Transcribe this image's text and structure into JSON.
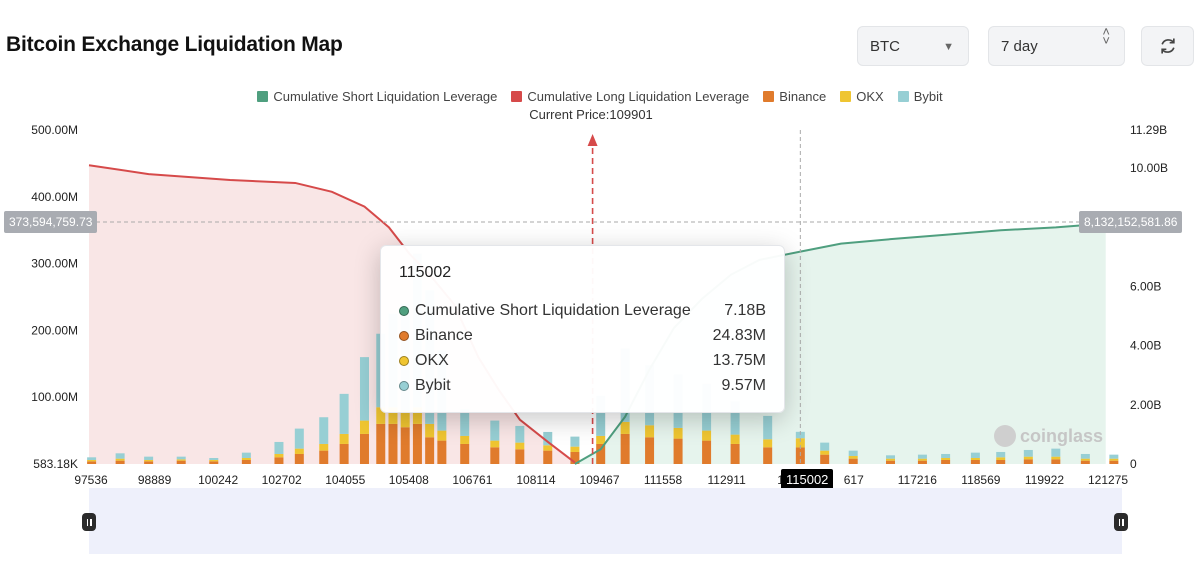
{
  "header": {
    "title": "Bitcoin Exchange Liquidation Map",
    "symbol_select": "BTC",
    "range_select": "7 day",
    "refresh_icon": "refresh-icon"
  },
  "legend": [
    {
      "label": "Cumulative Short Liquidation Leverage",
      "color": "#4f9f7f"
    },
    {
      "label": "Cumulative Long Liquidation Leverage",
      "color": "#d64a4a"
    },
    {
      "label": "Binance",
      "color": "#e07b2c"
    },
    {
      "label": "OKX",
      "color": "#efc531"
    },
    {
      "label": "Bybit",
      "color": "#97cfd4"
    }
  ],
  "current_price_label": "Current Price:109901",
  "tooltip": {
    "title": "115002",
    "rows": [
      {
        "label": "Cumulative Short Liquidation Leverage",
        "value": "7.18B",
        "color": "#4f9f7f"
      },
      {
        "label": "Binance",
        "value": "24.83M",
        "color": "#e07b2c"
      },
      {
        "label": "OKX",
        "value": "13.75M",
        "color": "#efc531"
      },
      {
        "label": "Bybit",
        "value": "9.57M",
        "color": "#97cfd4"
      }
    ]
  },
  "crosshair": {
    "x_label": "115002",
    "left_axis_label": "373,594,759.73",
    "right_axis_label": "8,132,152,581.86"
  },
  "watermark": "coinglass",
  "chart_data": {
    "type": "bar",
    "x_ticks": [
      "97536",
      "98889",
      "100242",
      "102702",
      "104055",
      "105408",
      "106761",
      "108114",
      "109467",
      "111558",
      "112911",
      "1142",
      "617",
      "117216",
      "118569",
      "119922",
      "121275"
    ],
    "left_axis": {
      "ticks": [
        "583.18K",
        "100.00M",
        "200.00M",
        "300.00M",
        "400.00M",
        "500.00M"
      ],
      "range": [
        0,
        500000000
      ]
    },
    "right_axis": {
      "ticks": [
        "0",
        "2.00B",
        "4.00B",
        "6.00B",
        "10.00B",
        "11.29B"
      ],
      "range": [
        0,
        11290000000
      ]
    },
    "x_range": [
      97536,
      122900
    ],
    "current_price": 109901,
    "cumulative_long": {
      "name": "Cumulative Long Liquidation Leverage",
      "color": "#d64a4a",
      "points": [
        [
          97536,
          10.1
        ],
        [
          99000,
          9.8
        ],
        [
          101000,
          9.6
        ],
        [
          102600,
          9.5
        ],
        [
          103500,
          9.2
        ],
        [
          104300,
          8.7
        ],
        [
          104900,
          8.0
        ],
        [
          105408,
          7.1
        ],
        [
          105900,
          6.4
        ],
        [
          106500,
          5.4
        ],
        [
          107100,
          3.6
        ],
        [
          107600,
          2.5
        ],
        [
          108114,
          1.5
        ],
        [
          108800,
          0.75
        ],
        [
          109467,
          0.05
        ]
      ]
    },
    "cumulative_short": {
      "name": "Cumulative Short Liquidation Leverage",
      "color": "#4f9f7f",
      "points": [
        [
          109467,
          0
        ],
        [
          110100,
          0.5
        ],
        [
          110700,
          1.6
        ],
        [
          111300,
          3.2
        ],
        [
          111900,
          4.6
        ],
        [
          112600,
          5.6
        ],
        [
          113300,
          6.4
        ],
        [
          114000,
          6.9
        ],
        [
          115002,
          7.18
        ],
        [
          116000,
          7.45
        ],
        [
          117216,
          7.6
        ],
        [
          118569,
          7.75
        ],
        [
          119922,
          7.9
        ],
        [
          121275,
          8.0
        ],
        [
          122500,
          8.13
        ]
      ]
    },
    "exchange_bar_samples": {
      "note_units": "millions",
      "series": [
        {
          "name": "Binance",
          "color": "#e07b2c"
        },
        {
          "name": "OKX",
          "color": "#efc531"
        },
        {
          "name": "Bybit",
          "color": "#97cfd4"
        }
      ],
      "points": [
        {
          "x": 97600,
          "binance": 4,
          "okx": 2,
          "bybit": 4
        },
        {
          "x": 98300,
          "binance": 5,
          "okx": 3,
          "bybit": 8
        },
        {
          "x": 99000,
          "binance": 4,
          "okx": 2,
          "bybit": 5
        },
        {
          "x": 99800,
          "binance": 5,
          "okx": 2,
          "bybit": 4
        },
        {
          "x": 100600,
          "binance": 4,
          "okx": 2,
          "bybit": 3
        },
        {
          "x": 101400,
          "binance": 6,
          "okx": 3,
          "bybit": 8
        },
        {
          "x": 102200,
          "binance": 10,
          "okx": 5,
          "bybit": 18
        },
        {
          "x": 102700,
          "binance": 15,
          "okx": 8,
          "bybit": 30
        },
        {
          "x": 103300,
          "binance": 20,
          "okx": 10,
          "bybit": 40
        },
        {
          "x": 103800,
          "binance": 30,
          "okx": 15,
          "bybit": 60
        },
        {
          "x": 104300,
          "binance": 45,
          "okx": 20,
          "bybit": 95
        },
        {
          "x": 104700,
          "binance": 60,
          "okx": 25,
          "bybit": 110
        },
        {
          "x": 105000,
          "binance": 60,
          "okx": 25,
          "bybit": 140
        },
        {
          "x": 105300,
          "binance": 55,
          "okx": 25,
          "bybit": 160
        },
        {
          "x": 105600,
          "binance": 60,
          "okx": 25,
          "bybit": 230
        },
        {
          "x": 105900,
          "binance": 40,
          "okx": 20,
          "bybit": 200
        },
        {
          "x": 106200,
          "binance": 35,
          "okx": 15,
          "bybit": 120
        },
        {
          "x": 106761,
          "binance": 30,
          "okx": 12,
          "bybit": 40
        },
        {
          "x": 107500,
          "binance": 25,
          "okx": 10,
          "bybit": 30
        },
        {
          "x": 108114,
          "binance": 22,
          "okx": 10,
          "bybit": 25
        },
        {
          "x": 108800,
          "binance": 20,
          "okx": 8,
          "bybit": 20
        },
        {
          "x": 109467,
          "binance": 18,
          "okx": 8,
          "bybit": 15
        },
        {
          "x": 110100,
          "binance": 30,
          "okx": 12,
          "bybit": 60
        },
        {
          "x": 110700,
          "binance": 45,
          "okx": 18,
          "bybit": 110
        },
        {
          "x": 111300,
          "binance": 40,
          "okx": 18,
          "bybit": 90
        },
        {
          "x": 112000,
          "binance": 38,
          "okx": 16,
          "bybit": 80
        },
        {
          "x": 112700,
          "binance": 35,
          "okx": 15,
          "bybit": 70
        },
        {
          "x": 113400,
          "binance": 30,
          "okx": 14,
          "bybit": 50
        },
        {
          "x": 114200,
          "binance": 25,
          "okx": 12,
          "bybit": 35
        },
        {
          "x": 115002,
          "binance": 24.83,
          "okx": 13.75,
          "bybit": 9.57
        },
        {
          "x": 115600,
          "binance": 14,
          "okx": 6,
          "bybit": 12
        },
        {
          "x": 116300,
          "binance": 8,
          "okx": 4,
          "bybit": 8
        },
        {
          "x": 117216,
          "binance": 5,
          "okx": 3,
          "bybit": 5
        },
        {
          "x": 118000,
          "binance": 5,
          "okx": 3,
          "bybit": 6
        },
        {
          "x": 118569,
          "binance": 6,
          "okx": 3,
          "bybit": 6
        },
        {
          "x": 119300,
          "binance": 6,
          "okx": 3,
          "bybit": 8
        },
        {
          "x": 119922,
          "binance": 6,
          "okx": 4,
          "bybit": 8
        },
        {
          "x": 120600,
          "binance": 7,
          "okx": 4,
          "bybit": 10
        },
        {
          "x": 121275,
          "binance": 7,
          "okx": 4,
          "bybit": 12
        },
        {
          "x": 122000,
          "binance": 5,
          "okx": 3,
          "bybit": 7
        },
        {
          "x": 122700,
          "binance": 5,
          "okx": 3,
          "bybit": 6
        }
      ]
    }
  }
}
